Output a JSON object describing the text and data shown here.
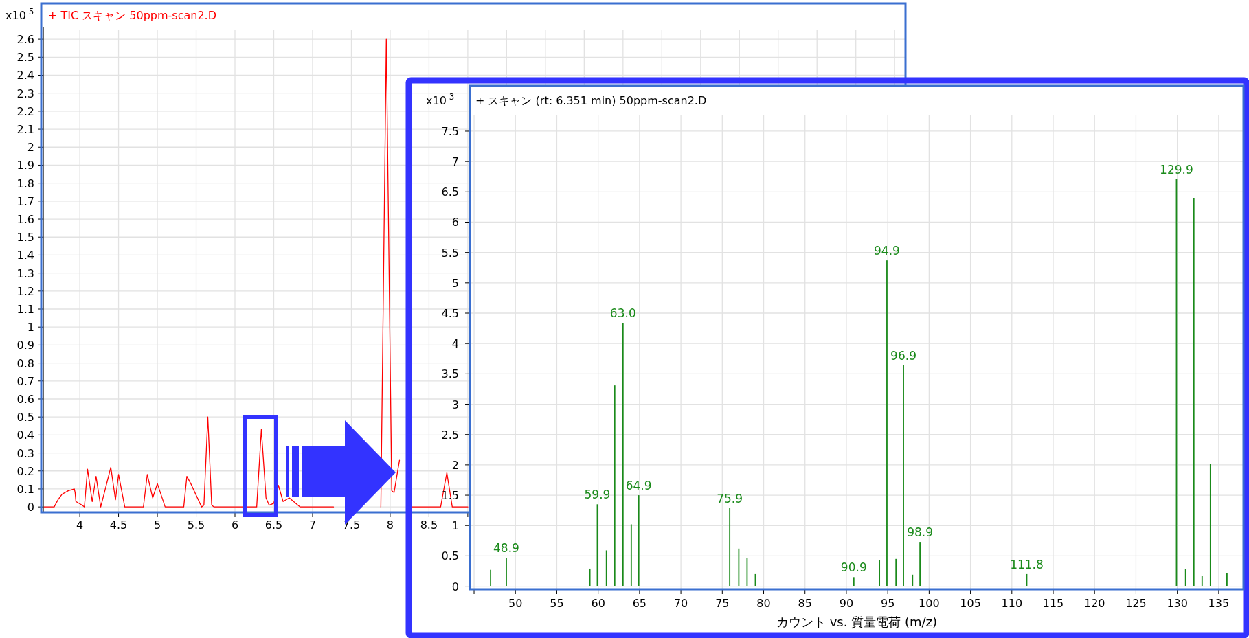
{
  "chart_data": [
    {
      "type": "line",
      "title": "+ TIC スキャン 50ppm-scan2.D",
      "ylabel": "x10$^{5}$",
      "color": "#ff0000",
      "grid": true,
      "xlim": [
        3.53,
        14.64
      ],
      "ylim": [
        -0.03,
        2.65
      ],
      "xticks": [
        4,
        4.5,
        5,
        5.5,
        6,
        6.5,
        7,
        7.5,
        8,
        8.5,
        {
          "value": 9,
          "label": null
        },
        {
          "value": 9.5,
          "label": null
        },
        {
          "value": 10,
          "label": null
        },
        {
          "value": 10.5,
          "label": null
        },
        {
          "value": 11,
          "label": null
        },
        {
          "value": 11.5,
          "label": null
        },
        {
          "value": 12,
          "label": null
        },
        {
          "value": 12.5,
          "label": null
        },
        {
          "value": 13,
          "label": null
        },
        {
          "value": 13.5,
          "label": null
        },
        {
          "value": 14,
          "label": null
        },
        {
          "value": 14.5,
          "label": null
        }
      ],
      "yticks": [
        0,
        0.1,
        0.2,
        0.3,
        0.4,
        0.5,
        0.6,
        0.7,
        0.8,
        0.9,
        1,
        1.1,
        1.2,
        1.3,
        1.4,
        1.5,
        1.6,
        1.7,
        1.8,
        1.9,
        2,
        2.1,
        2.2,
        2.3,
        2.4,
        2.5,
        2.6
      ],
      "x": [
        3.54,
        3.67,
        3.72,
        3.77,
        3.85,
        3.93,
        3.94,
        3.95,
        4.03,
        4.06,
        4.1,
        4.16,
        4.21,
        4.27,
        4.4,
        4.46,
        4.5,
        4.58,
        4.82,
        4.87,
        4.94,
        5.0,
        5.1,
        5.34,
        5.38,
        5.43,
        5.57,
        5.6,
        5.65,
        5.7,
        5.73,
        6.28,
        6.34,
        6.4,
        6.44,
        6.5,
        6.56,
        6.62,
        6.7,
        6.84,
        7.27,
        7.4,
        7.88,
        7.95,
        8.02,
        8.05,
        8.12,
        8.2,
        8.25,
        8.65,
        8.73,
        8.8,
        9.0
      ],
      "values": [
        0,
        0,
        0.04,
        0.07,
        0.09,
        0.1,
        0.08,
        0.03,
        0.01,
        0,
        0.21,
        0.03,
        0.17,
        0,
        0.22,
        0.04,
        0.18,
        0,
        0,
        0.18,
        0.05,
        0.13,
        0,
        0,
        0.17,
        0.13,
        0,
        0.01,
        0.5,
        0.01,
        0,
        0,
        0.43,
        0.05,
        0.01,
        0.02,
        0.12,
        0.03,
        0.05,
        0,
        0,
        null,
        0,
        2.6,
        0.09,
        0.08,
        0.26,
        null,
        0,
        0,
        0.19,
        0,
        0
      ]
    },
    {
      "type": "bar",
      "title": "+ スキャン (rt: 6.351 min) 50ppm-scan2.D",
      "ylabel": "x10$^{3}$",
      "xlabel": "カウント vs. 質量電荷 (m/z)",
      "color": "#1a8a1a",
      "grid": true,
      "xlim": [
        44.5,
        138
      ],
      "ylim": [
        -0.05,
        7.76
      ],
      "xticks": [
        {
          "value": 45,
          "label": null
        },
        50,
        55,
        60,
        65,
        70,
        75,
        80,
        85,
        90,
        95,
        100,
        105,
        110,
        115,
        120,
        125,
        130,
        135
      ],
      "yticks": [
        0,
        0.5,
        1,
        1.5,
        2,
        2.5,
        3,
        3.5,
        4,
        4.5,
        5,
        5.5,
        6,
        6.5,
        7,
        7.5
      ],
      "x": [
        47,
        48.9,
        59,
        59.9,
        61,
        62,
        63,
        64,
        64.9,
        75.9,
        77,
        78,
        79,
        90.9,
        94,
        94.9,
        96,
        96.9,
        98,
        98.9,
        111.8,
        129.9,
        131,
        132,
        133,
        134,
        136
      ],
      "values": [
        0.27,
        0.47,
        0.29,
        1.35,
        0.59,
        3.31,
        4.34,
        1.02,
        1.5,
        1.29,
        0.62,
        0.46,
        0.2,
        0.15,
        0.43,
        5.37,
        0.45,
        3.64,
        0.19,
        0.73,
        0.2,
        6.71,
        0.28,
        6.4,
        0.17,
        2.01,
        0.22
      ],
      "annotations": [
        {
          "text": "48.9",
          "x": 48.9,
          "y": 0.47
        },
        {
          "text": "59.9",
          "x": 59.9,
          "y": 1.35
        },
        {
          "text": "63.0",
          "x": 63,
          "y": 4.34
        },
        {
          "text": "64.9",
          "x": 64.9,
          "y": 1.5
        },
        {
          "text": "75.9",
          "x": 75.9,
          "y": 1.29
        },
        {
          "text": "90.9",
          "x": 90.9,
          "y": 0.15
        },
        {
          "text": "94.9",
          "x": 94.9,
          "y": 5.37
        },
        {
          "text": "96.9",
          "x": 96.9,
          "y": 3.64
        },
        {
          "text": "98.9",
          "x": 98.9,
          "y": 0.73
        },
        {
          "text": "111.8",
          "x": 111.8,
          "y": 0.2
        },
        {
          "text": "129.9",
          "x": 129.9,
          "y": 6.71
        }
      ]
    }
  ]
}
